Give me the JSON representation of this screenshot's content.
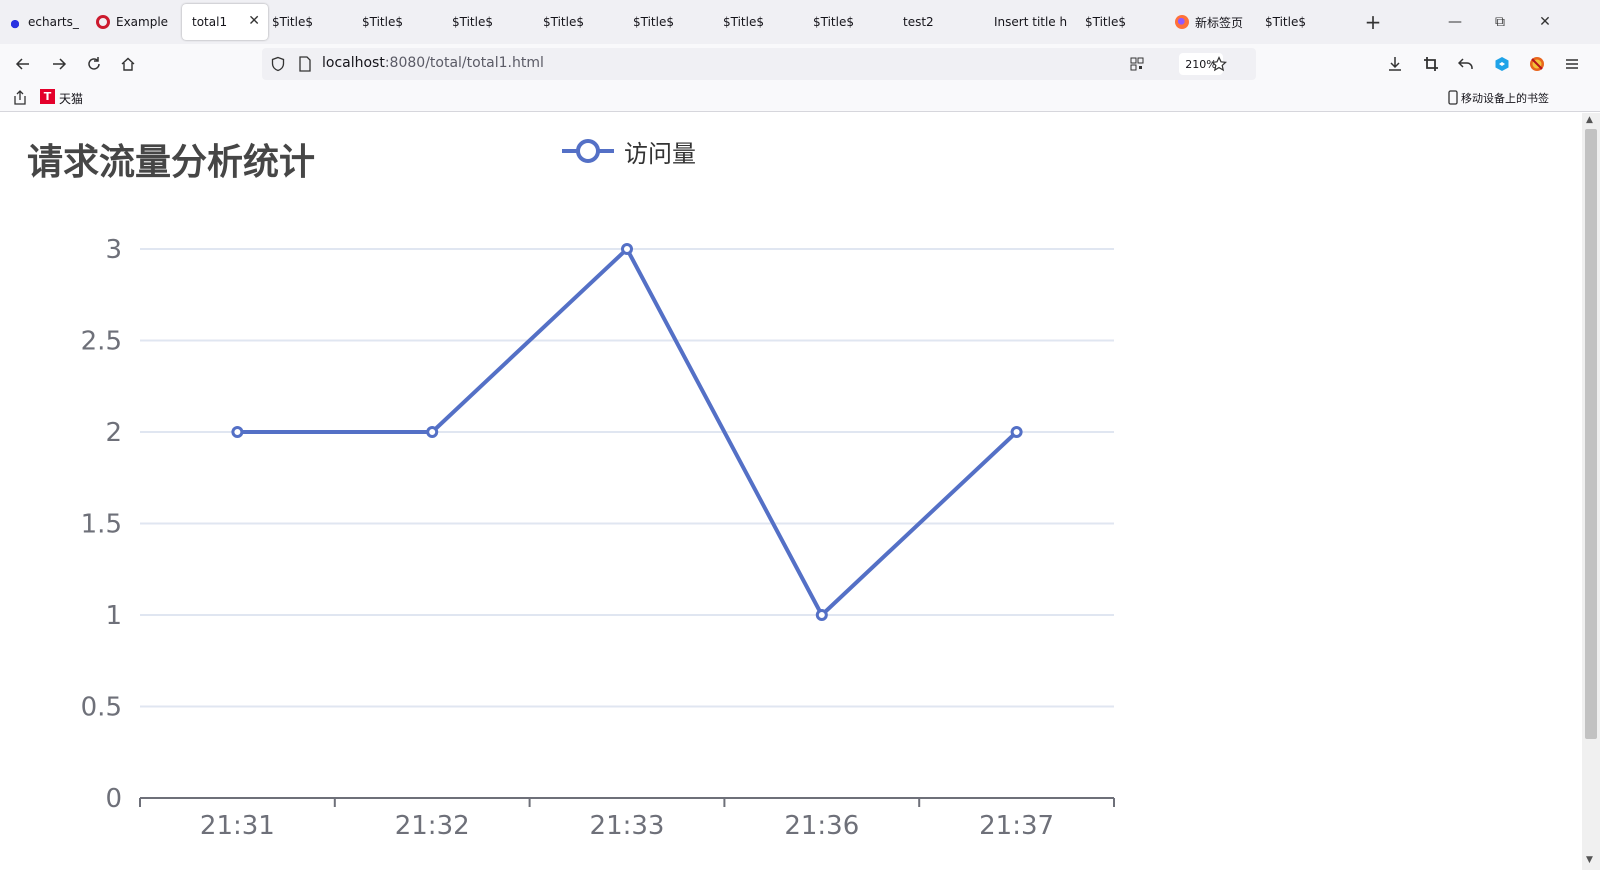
{
  "browser": {
    "tabs": [
      {
        "label": "echarts_",
        "icon": "paw-icon"
      },
      {
        "label": "Example",
        "icon": "opera-icon"
      },
      {
        "label": "total1",
        "active": true
      },
      {
        "label": "$Title$"
      },
      {
        "label": "$Title$"
      },
      {
        "label": "$Title$"
      },
      {
        "label": "$Title$"
      },
      {
        "label": "$Title$"
      },
      {
        "label": "$Title$"
      },
      {
        "label": "$Title$"
      },
      {
        "label": "test2"
      },
      {
        "label": "Insert title h"
      },
      {
        "label": "$Title$"
      },
      {
        "label": "新标签页",
        "icon": "firefox-icon"
      },
      {
        "label": "$Title$"
      }
    ],
    "url_host": "localhost",
    "url_rest": ":8080/total/total1.html",
    "zoom": "210%",
    "bookmarks": {
      "tmall_label": "天猫",
      "mobile_label": "移动设备上的书签"
    }
  },
  "chart_data": {
    "type": "line",
    "title": "请求流量分析统计",
    "categories": [
      "21:31",
      "21:32",
      "21:33",
      "21:36",
      "21:37"
    ],
    "series": [
      {
        "name": "访问量",
        "values": [
          2,
          2,
          3,
          1,
          2
        ],
        "color": "#5470c6"
      }
    ],
    "ylim": [
      0,
      3
    ],
    "yticks": [
      0,
      0.5,
      1,
      1.5,
      2,
      2.5,
      3
    ],
    "ytick_labels": [
      "0",
      "0.5",
      "1",
      "1.5",
      "2",
      "2.5",
      "3"
    ],
    "grid": true,
    "legend_position": "top-center"
  }
}
